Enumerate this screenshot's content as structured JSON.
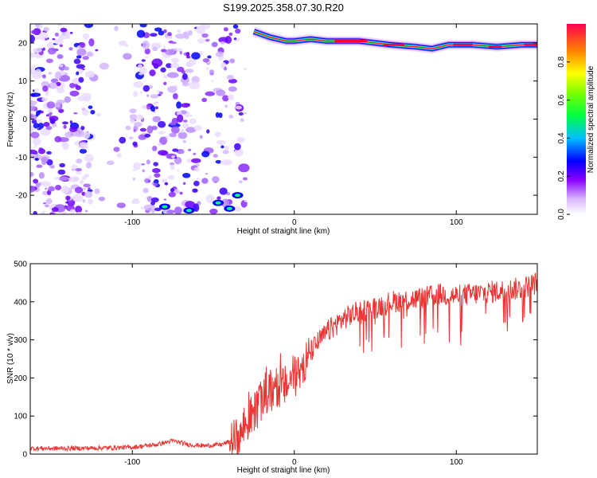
{
  "title": "S199.2025.358.07.30.R20",
  "chart_data": [
    {
      "type": "heatmap",
      "xlabel": "Height of straight line (km)",
      "ylabel": "Frequency (Hz)",
      "xlim": [
        -163,
        150
      ],
      "ylim": [
        -25,
        25
      ],
      "xticks": [
        -100,
        0,
        100
      ],
      "yticks": [
        -20,
        -10,
        0,
        10,
        20
      ],
      "colorbar": {
        "label": "Normalized spectral amplitude",
        "range": [
          0,
          1
        ],
        "ticks": [
          0.0,
          0.2,
          0.4,
          0.6,
          0.8
        ]
      },
      "features": {
        "noise_region_x": [
          -163,
          -30
        ],
        "clear_gap_x": [
          -125,
          -100
        ],
        "signal_line": {
          "x": [
            -25,
            -15,
            -5,
            0,
            10,
            20,
            40,
            60,
            75,
            85,
            95,
            110,
            125,
            140,
            150
          ],
          "freq": [
            23,
            21.5,
            20.5,
            20.5,
            21,
            20.5,
            20.5,
            19.5,
            19,
            18.5,
            19.5,
            19.5,
            19,
            19.5,
            19.5
          ]
        }
      }
    },
    {
      "type": "line",
      "xlabel": "Height of straight line (km)",
      "ylabel": "SNR (10 * v/v)",
      "xlim": [
        -163,
        150
      ],
      "ylim": [
        0,
        500
      ],
      "xticks": [
        -100,
        0,
        100
      ],
      "yticks": [
        0,
        100,
        200,
        300,
        400,
        500
      ],
      "line_color": "#ee3333",
      "series": [
        {
          "x": [
            -163,
            -140,
            -120,
            -100,
            -85,
            -75,
            -65,
            -55,
            -45,
            -35,
            -28,
            -20,
            -12,
            -5,
            0,
            5,
            12,
            20,
            30,
            40,
            50,
            60,
            70,
            80,
            90,
            100,
            110,
            120,
            130,
            140,
            150
          ],
          "values": [
            15,
            15,
            16,
            18,
            25,
            35,
            25,
            22,
            25,
            40,
            90,
            140,
            170,
            180,
            200,
            230,
            280,
            320,
            355,
            375,
            385,
            400,
            405,
            410,
            420,
            415,
            420,
            425,
            430,
            435,
            450
          ]
        }
      ]
    }
  ]
}
